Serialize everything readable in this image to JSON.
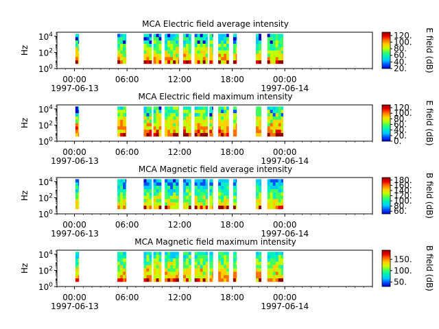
{
  "figure": {
    "x_ticks": [
      "00:00",
      "06:00",
      "12:00",
      "18:00",
      "00:00"
    ],
    "date_start": "1997-06-13",
    "date_end": "1997-06-14",
    "y_ticks": [
      "10^4",
      "10^2",
      "10^0"
    ],
    "colormap": [
      "#0000c8",
      "#0050ff",
      "#00c8ff",
      "#00f0c0",
      "#40ff60",
      "#c0ff00",
      "#ffd000",
      "#ff7000",
      "#e80000",
      "#900000"
    ]
  },
  "chart_data": [
    {
      "type": "heatmap",
      "title": "MCA  Electric field average intensity",
      "ylabel": "Hz",
      "colorbar_label": "E field (dB)",
      "colorbar_ticks": [
        "120.",
        "100.",
        "80.",
        "60.",
        "40.",
        "20."
      ],
      "x_range_hours": [
        -2,
        34
      ],
      "y_range_log10_hz": [
        0,
        4.5
      ],
      "segments_hours": [
        [
          0.1,
          0.5
        ],
        [
          4.9,
          5.9
        ],
        [
          7.9,
          8.8
        ],
        [
          9.0,
          9.9
        ],
        [
          10.3,
          11.9
        ],
        [
          12.4,
          13.3
        ],
        [
          13.7,
          15.2
        ],
        [
          15.4,
          15.8
        ],
        [
          16.4,
          17.6
        ],
        [
          18.1,
          18.5
        ],
        [
          20.7,
          21.3
        ],
        [
          22.0,
          23.8
        ]
      ],
      "colorbar_range": [
        20,
        130
      ]
    },
    {
      "type": "heatmap",
      "title": "MCA  Electric field maximum intensity",
      "ylabel": "Hz",
      "colorbar_label": "E field (dB)",
      "colorbar_ticks": [
        "120.",
        "100.",
        "80.",
        "60.",
        "40.",
        "20.",
        "0."
      ],
      "x_range_hours": [
        -2,
        34
      ],
      "y_range_log10_hz": [
        0,
        4.5
      ],
      "segments_hours": [
        [
          0.1,
          0.5
        ],
        [
          4.9,
          5.9
        ],
        [
          7.9,
          8.8
        ],
        [
          9.0,
          9.9
        ],
        [
          10.3,
          11.9
        ],
        [
          12.4,
          13.3
        ],
        [
          13.7,
          15.2
        ],
        [
          15.4,
          15.8
        ],
        [
          16.4,
          17.6
        ],
        [
          18.1,
          18.5
        ],
        [
          20.7,
          21.3
        ],
        [
          22.0,
          23.8
        ]
      ],
      "colorbar_range": [
        0,
        130
      ]
    },
    {
      "type": "heatmap",
      "title": "MCA  Magnetic field average intensity",
      "ylabel": "Hz",
      "colorbar_label": "B field (dB)",
      "colorbar_ticks": [
        "180.",
        "160.",
        "140.",
        "120.",
        "100.",
        "80.",
        "60."
      ],
      "x_range_hours": [
        -2,
        34
      ],
      "y_range_log10_hz": [
        0,
        4.5
      ],
      "segments_hours": [
        [
          0.1,
          0.5
        ],
        [
          4.9,
          5.9
        ],
        [
          7.9,
          8.8
        ],
        [
          9.0,
          9.9
        ],
        [
          10.3,
          11.9
        ],
        [
          12.4,
          13.3
        ],
        [
          13.7,
          15.2
        ],
        [
          15.4,
          15.8
        ],
        [
          16.4,
          17.6
        ],
        [
          18.1,
          18.5
        ],
        [
          20.7,
          21.3
        ],
        [
          22.0,
          23.8
        ]
      ],
      "colorbar_range": [
        50,
        190
      ]
    },
    {
      "type": "heatmap",
      "title": "MCA  Magnetic field maximum intensity",
      "ylabel": "Hz",
      "colorbar_label": "B field (dB)",
      "colorbar_ticks": [
        "150.",
        "100.",
        "50."
      ],
      "x_range_hours": [
        -2,
        34
      ],
      "y_range_log10_hz": [
        0,
        4.5
      ],
      "segments_hours": [
        [
          0.1,
          0.5
        ],
        [
          4.9,
          5.9
        ],
        [
          7.9,
          8.8
        ],
        [
          9.0,
          9.9
        ],
        [
          10.3,
          11.9
        ],
        [
          12.4,
          13.3
        ],
        [
          13.7,
          15.2
        ],
        [
          15.4,
          15.8
        ],
        [
          16.4,
          17.6
        ],
        [
          18.1,
          18.5
        ],
        [
          20.7,
          21.3
        ],
        [
          22.0,
          23.8
        ]
      ],
      "colorbar_range": [
        30,
        190
      ]
    }
  ]
}
